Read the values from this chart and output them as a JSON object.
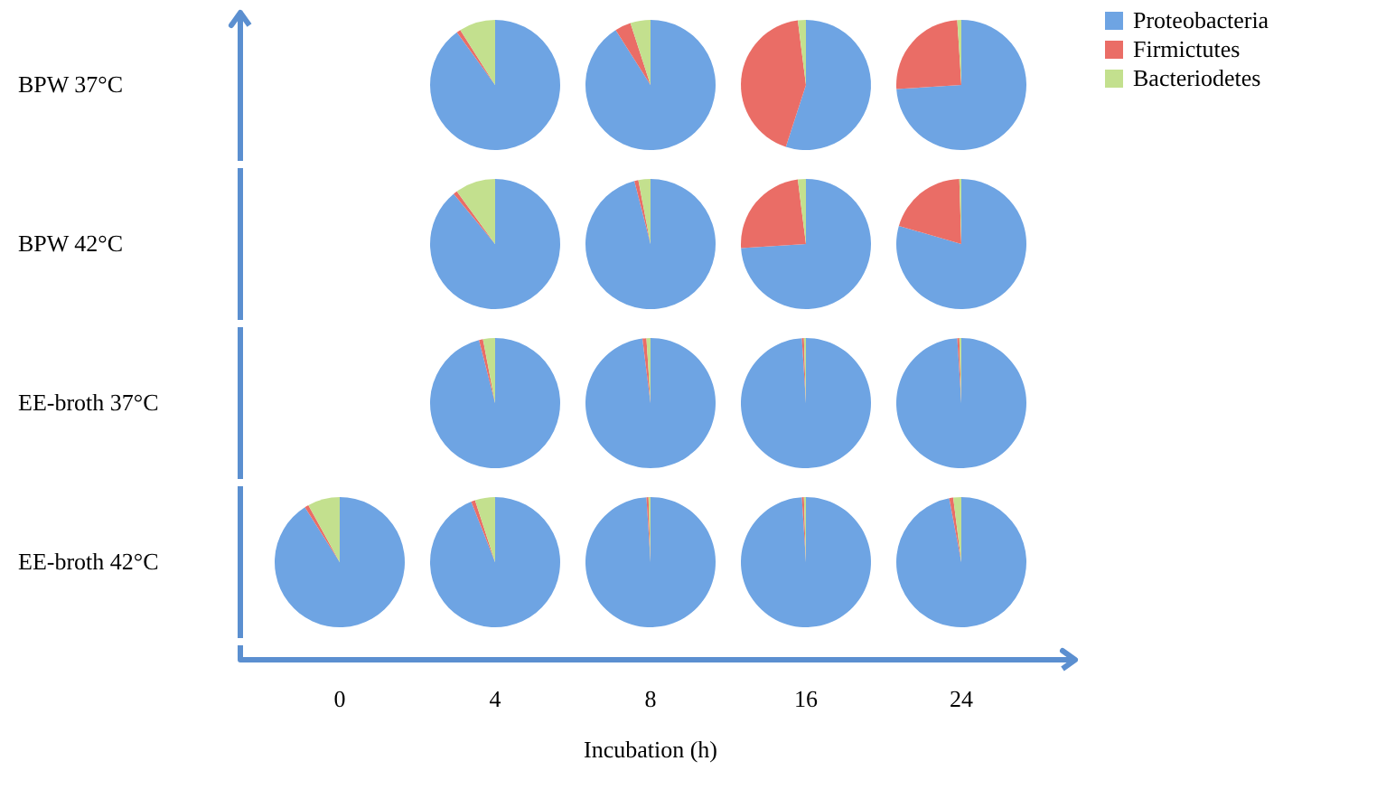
{
  "chart_data": [
    {
      "type": "other",
      "categories": [
        "0",
        "4",
        "8",
        "16",
        "24"
      ],
      "xlabel": "Incubation (h)"
    },
    {
      "type": "pie",
      "ylabel": "BPW 37°C",
      "categories": [
        "Proteobacteria",
        "Firmictutes",
        "Bacteriodetes"
      ],
      "legend": "right",
      "series": [
        {
          "values": [
            90,
            1,
            9
          ],
          "colors": [
            "#6ea4e3",
            "#ea6d66",
            "#c3e08e"
          ]
        },
        {
          "values": [
            91,
            4,
            5
          ],
          "colors": [
            "#6ea4e3",
            "#ea6d66",
            "#c3e08e"
          ]
        },
        {
          "values": [
            55,
            43,
            2
          ],
          "colors": [
            "#6ea4e3",
            "#ea6d66",
            "#c3e08e"
          ]
        },
        {
          "values": [
            74,
            25,
            1
          ],
          "colors": [
            "#6ea4e3",
            "#ea6d66",
            "#c3e08e"
          ]
        }
      ]
    },
    {
      "type": "pie",
      "ylabel": "BPW 42°C",
      "series": [
        {
          "values": [
            89,
            1,
            10
          ],
          "colors": [
            "#6ea4e3",
            "#ea6d66",
            "#c3e08e"
          ]
        },
        {
          "values": [
            96,
            1,
            3
          ],
          "colors": [
            "#6ea4e3",
            "#ea6d66",
            "#c3e08e"
          ]
        },
        {
          "values": [
            74,
            24,
            2
          ],
          "colors": [
            "#6ea4e3",
            "#ea6d66",
            "#c3e08e"
          ]
        },
        {
          "values": [
            79.5,
            20,
            0.5
          ],
          "colors": [
            "#6ea4e3",
            "#ea6d66",
            "#c3e08e"
          ]
        }
      ]
    },
    {
      "type": "pie",
      "ylabel": "EE-broth 37°C",
      "series": [
        {
          "values": [
            96,
            1,
            3
          ],
          "colors": [
            "#6ea4e3",
            "#ea6d66",
            "#c3e08e"
          ]
        },
        {
          "values": [
            98,
            1,
            1
          ],
          "colors": [
            "#6ea4e3",
            "#ea6d66",
            "#c3e08e"
          ]
        },
        {
          "values": [
            99,
            0.5,
            0.5
          ],
          "colors": [
            "#6ea4e3",
            "#ea6d66",
            "#c3e08e"
          ]
        },
        {
          "values": [
            99,
            0.5,
            0.5
          ],
          "colors": [
            "#6ea4e3",
            "#ea6d66",
            "#c3e08e"
          ]
        }
      ]
    },
    {
      "type": "pie",
      "ylabel": "EE-broth 42°C",
      "series": [
        {
          "values": [
            91,
            1,
            8
          ],
          "colors": [
            "#6ea4e3",
            "#ea6d66",
            "#c3e08e"
          ]
        },
        {
          "values": [
            94,
            1,
            5
          ],
          "colors": [
            "#6ea4e3",
            "#ea6d66",
            "#c3e08e"
          ]
        },
        {
          "values": [
            99,
            0.5,
            0.5
          ],
          "colors": [
            "#6ea4e3",
            "#ea6d66",
            "#c3e08e"
          ]
        },
        {
          "values": [
            99,
            0.5,
            0.5
          ],
          "colors": [
            "#6ea4e3",
            "#ea6d66",
            "#c3e08e"
          ]
        },
        {
          "values": [
            97,
            1,
            2
          ],
          "colors": [
            "#6ea4e3",
            "#ea6d66",
            "#c3e08e"
          ]
        }
      ]
    }
  ]
}
